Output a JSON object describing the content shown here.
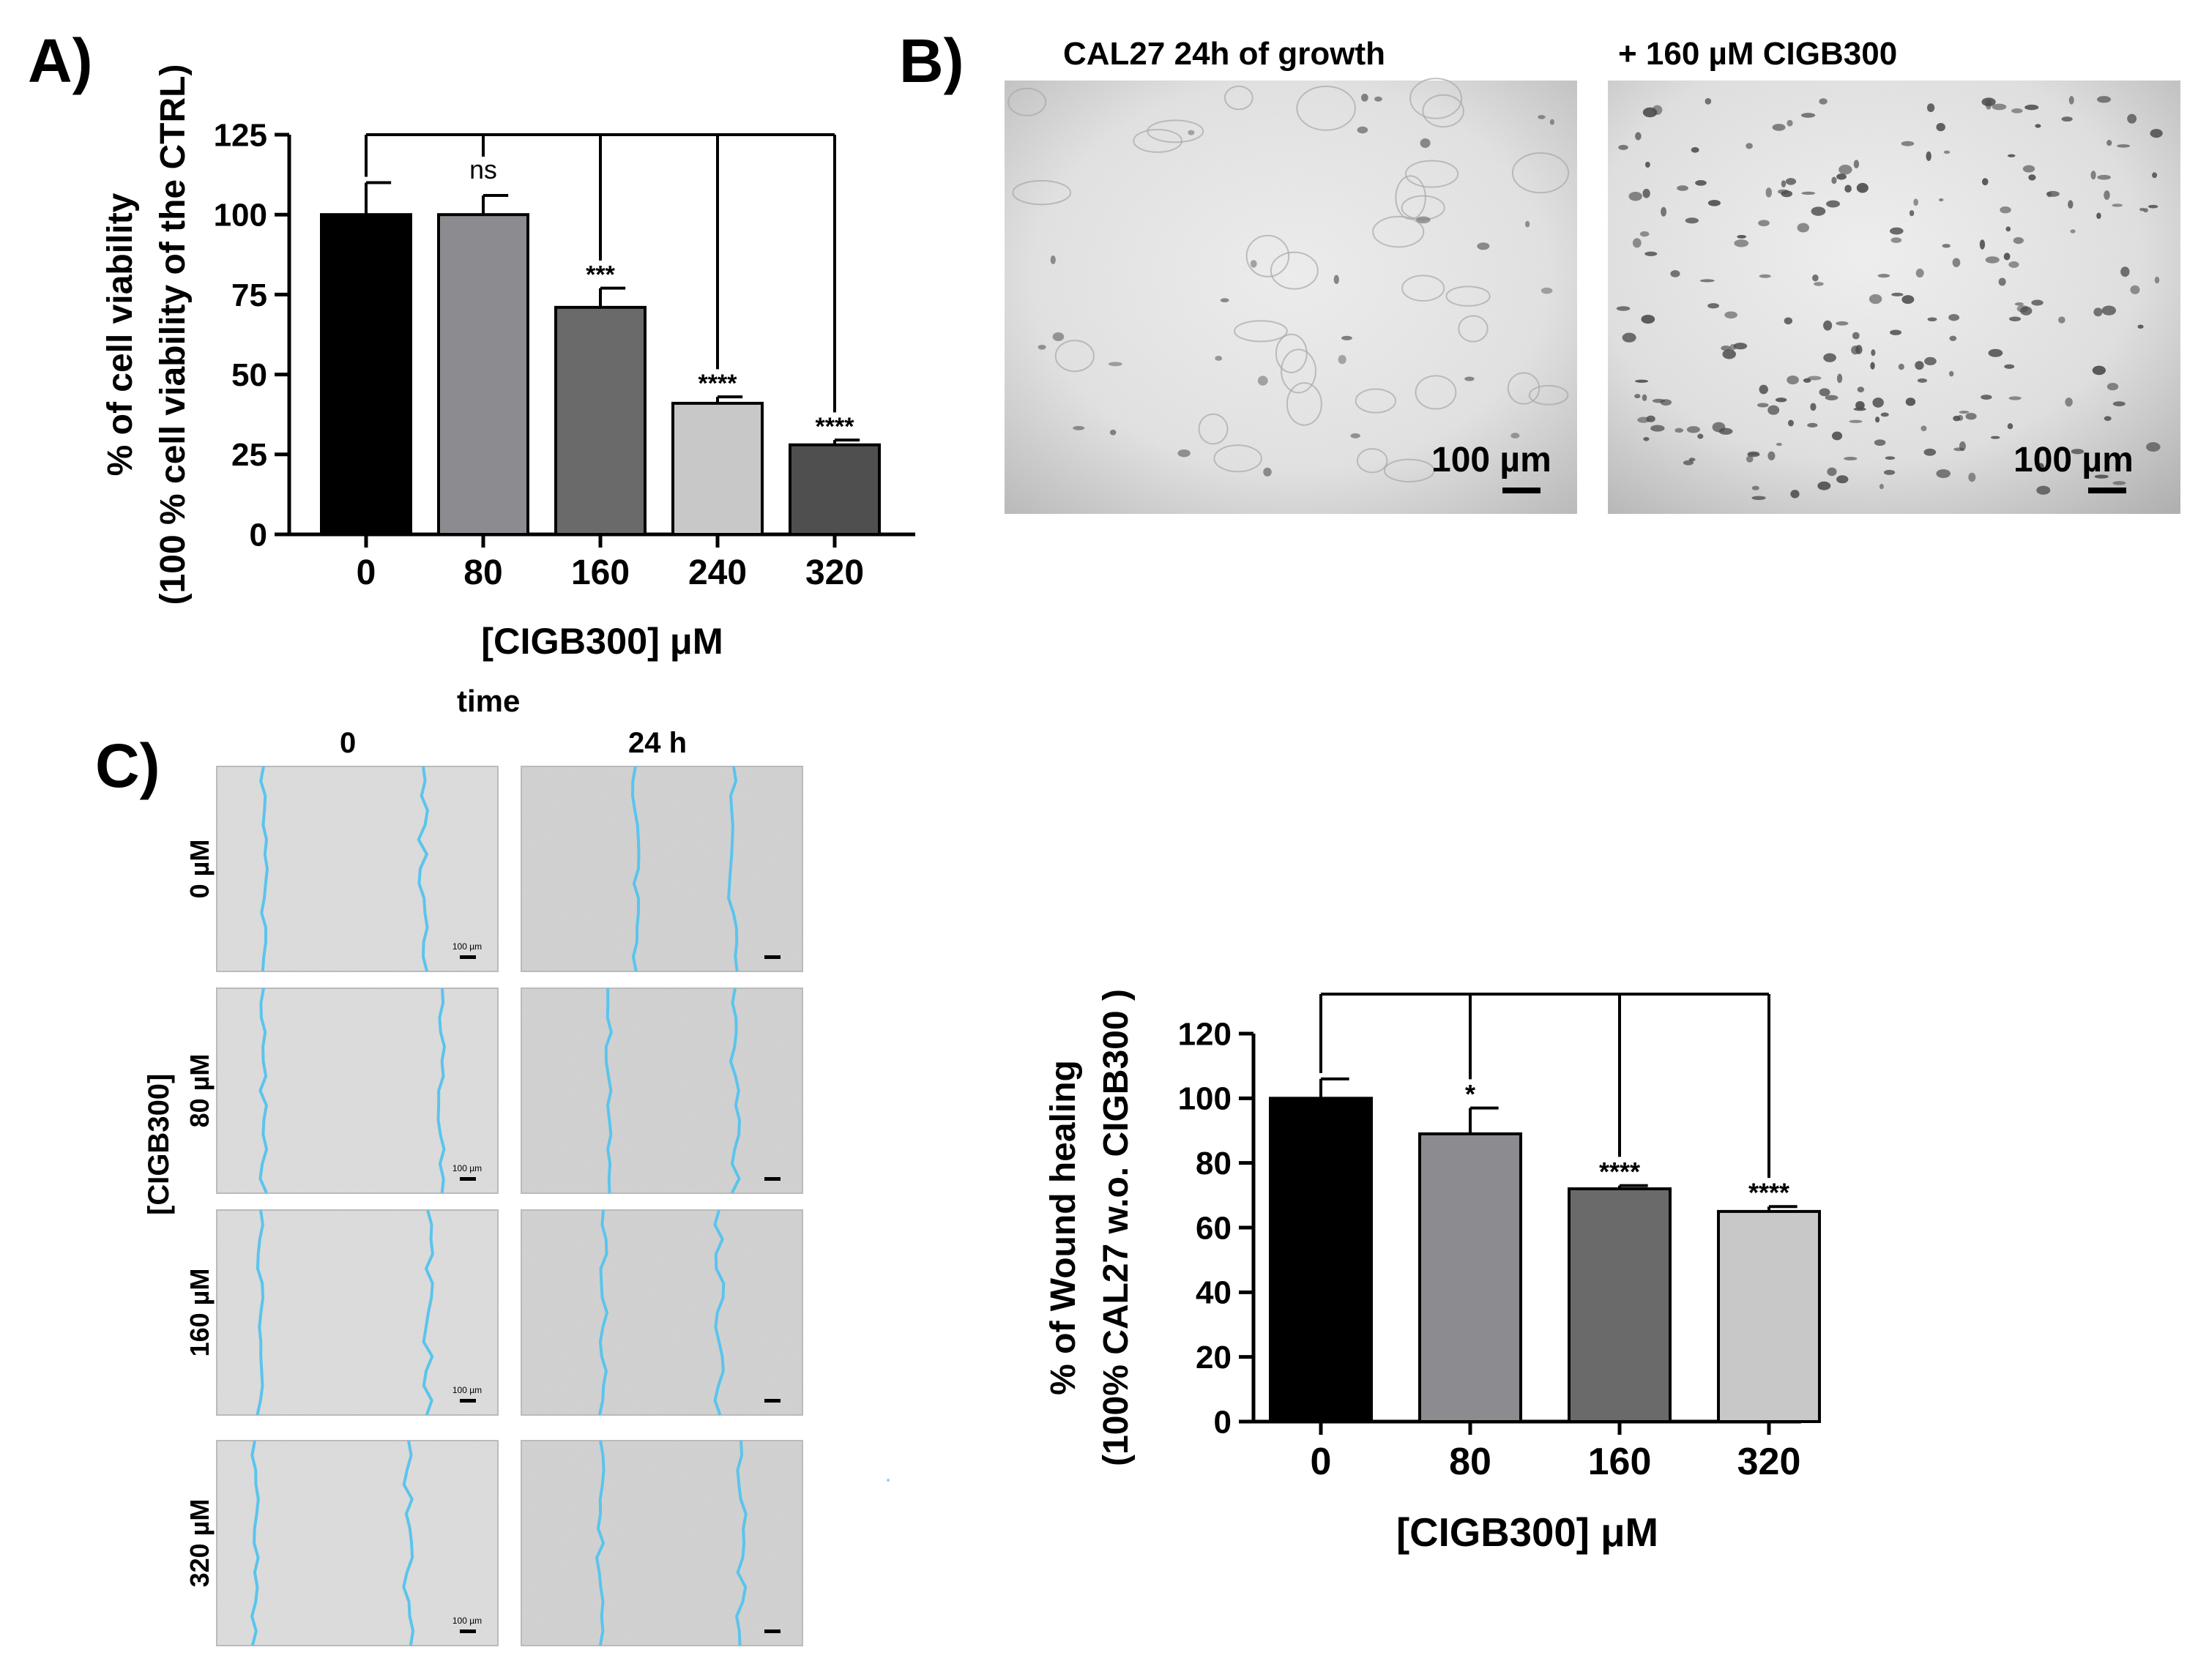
{
  "panel_labels": {
    "a": "A)",
    "b": "B)",
    "c": "C)"
  },
  "colors": {
    "bar_0": "#000000",
    "bar_80": "#8c8c90",
    "bar_160": "#6a6a6a",
    "bar_240": "#c8c8c8",
    "bar_320": "#4f4f4f",
    "wound_line": "#5bc4ec",
    "micro_bg": "#dcdcdc"
  },
  "chart_data": [
    {
      "type": "bar",
      "categories": [
        "0",
        "80",
        "160",
        "240",
        "320"
      ],
      "values": [
        100,
        100,
        71,
        41,
        28
      ],
      "errors": [
        10,
        6,
        6,
        2,
        1.5
      ],
      "significance": [
        "",
        "ns",
        "***",
        "****",
        "****"
      ],
      "xlabel": "[CIGB300] μM",
      "ylabel": "% of cell viability",
      "ylabel2": "(100 % cell viability of the CTRL)",
      "ylim": [
        0,
        125
      ],
      "yticks": [
        0,
        25,
        50,
        75,
        100,
        125
      ],
      "grid": false,
      "legend": "none"
    },
    {
      "type": "bar",
      "categories": [
        "0",
        "80",
        "160",
        "320"
      ],
      "values": [
        100,
        89,
        72,
        65
      ],
      "errors": [
        6,
        8,
        1,
        1.5
      ],
      "significance": [
        "",
        "*",
        "****",
        "****"
      ],
      "xlabel": "[CIGB300] μM",
      "ylabel": "% of Wound healing",
      "ylabel2": "(100% CAL27 w.o. CIGB300  )",
      "ylim": [
        0,
        120
      ],
      "yticks": [
        0,
        20,
        40,
        60,
        80,
        100,
        120
      ],
      "grid": false,
      "legend": "none"
    }
  ],
  "micrographs": {
    "left_title": "CAL27 24h of growth",
    "right_title": "+ 160 µM CIGB300",
    "scale_label": "100 µm"
  },
  "wound_assay": {
    "time_label": "time",
    "time_cols": [
      "0",
      "24 h"
    ],
    "group_label": "[CIGB300]",
    "row_labels": [
      "0 µM",
      "80 µM",
      "160 µM",
      "320 µM"
    ],
    "scale_label": "100 µm"
  }
}
